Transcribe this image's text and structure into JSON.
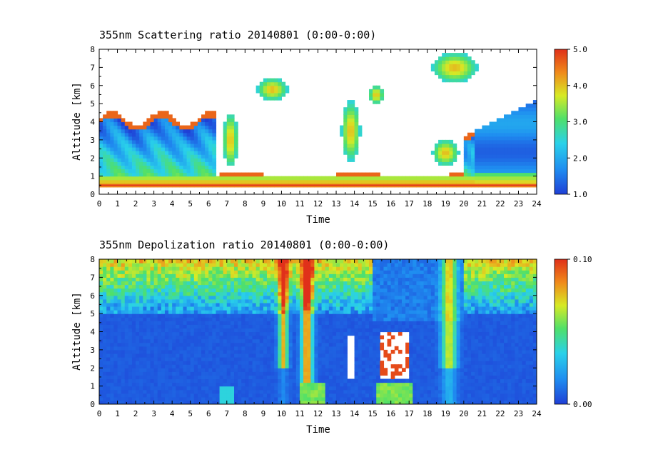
{
  "chart_data": [
    {
      "type": "heatmap",
      "title": "355nm Scattering ratio  20140801 (0:00-0:00)",
      "xlabel": "Time",
      "ylabel": "Altitude [km]",
      "xlim": [
        0,
        24
      ],
      "ylim": [
        0,
        8
      ],
      "x_ticks": [
        "0",
        "1",
        "2",
        "3",
        "4",
        "5",
        "6",
        "7",
        "8",
        "9",
        "10",
        "11",
        "12",
        "13",
        "14",
        "15",
        "16",
        "17",
        "18",
        "19",
        "20",
        "21",
        "22",
        "23",
        "24"
      ],
      "y_ticks": [
        "0",
        "1",
        "2",
        "3",
        "4",
        "5",
        "6",
        "7",
        "8"
      ],
      "colorbar": {
        "min": 1.0,
        "max": 5.0,
        "tick_labels": [
          "1.0",
          "2.0",
          "3.0",
          "4.0",
          "5.0"
        ]
      },
      "colormap": [
        "#1f3fd6",
        "#1f8cf0",
        "#29d1ea",
        "#4fe06a",
        "#d7ea25",
        "#f08a1a",
        "#e0301a"
      ],
      "masked_color": "#ffffff",
      "surface_line_km": 0.5
    },
    {
      "type": "heatmap",
      "title": "355nm Depolization ratio  20140801 (0:00-0:00)",
      "xlabel": "Time",
      "ylabel": "Altitude [km]",
      "xlim": [
        0,
        24
      ],
      "ylim": [
        0,
        8
      ],
      "x_ticks": [
        "0",
        "1",
        "2",
        "3",
        "4",
        "5",
        "6",
        "7",
        "8",
        "9",
        "10",
        "11",
        "12",
        "13",
        "14",
        "15",
        "16",
        "17",
        "18",
        "19",
        "20",
        "21",
        "22",
        "23",
        "24"
      ],
      "y_ticks": [
        "0",
        "1",
        "2",
        "3",
        "4",
        "5",
        "6",
        "7",
        "8"
      ],
      "colorbar": {
        "min": 0.0,
        "max": 0.1,
        "tick_labels": [
          "0.00",
          "0.10"
        ]
      },
      "colormap": [
        "#1f3fd6",
        "#1f8cf0",
        "#29d1ea",
        "#4fe06a",
        "#d7ea25",
        "#f08a1a",
        "#e0301a"
      ],
      "masked_color": "#ffffff"
    }
  ]
}
